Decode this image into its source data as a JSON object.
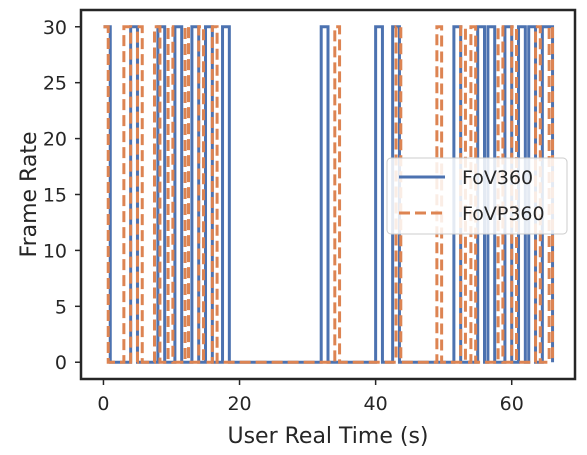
{
  "chart_data": {
    "type": "line",
    "step": "post",
    "xlabel": "User Real Time (s)",
    "ylabel": "Frame Rate",
    "xlim": [
      -3.3,
      69.3
    ],
    "ylim": [
      -1.5,
      31.5
    ],
    "xticks": [
      0,
      20,
      40,
      60
    ],
    "yticks": [
      0,
      5,
      10,
      15,
      20,
      25,
      30
    ],
    "grid": false,
    "legend_position": "center-right",
    "series": [
      {
        "name": "FoV360",
        "color": "#4c72b0",
        "dash": "solid",
        "x": [
          0,
          1,
          4,
          5,
          8,
          9,
          10.5,
          11.5,
          13,
          14,
          15,
          16,
          17.5,
          18.5,
          32,
          33,
          40,
          41,
          42.5,
          43.5,
          51.5,
          52.5,
          55,
          56,
          56.5,
          57.5,
          59,
          60,
          61,
          62,
          62.5,
          63.5,
          64.5,
          66
        ],
        "y": [
          30,
          0,
          30,
          0,
          30,
          0,
          30,
          0,
          30,
          0,
          30,
          0,
          30,
          0,
          30,
          0,
          30,
          0,
          30,
          0,
          30,
          0,
          30,
          0,
          30,
          0,
          30,
          0,
          30,
          0,
          30,
          0,
          30,
          0
        ]
      },
      {
        "name": "FoVP360",
        "color": "#dd8452",
        "dash": "dashed",
        "x": [
          0,
          0.7,
          3,
          4,
          5,
          5.7,
          7.5,
          8.3,
          9.5,
          10.2,
          12,
          12.5,
          14,
          14.7,
          16,
          16.7,
          34,
          34.7,
          43,
          43.7,
          49,
          49.7,
          52.5,
          53.2,
          54,
          54.7,
          58,
          58.7,
          60,
          60.7,
          63.5,
          64.2,
          65.5,
          66
        ],
        "y": [
          30,
          0,
          30,
          0,
          30,
          0,
          30,
          0,
          30,
          0,
          30,
          0,
          30,
          0,
          30,
          0,
          30,
          0,
          30,
          0,
          30,
          0,
          30,
          0,
          30,
          0,
          30,
          0,
          30,
          0,
          30,
          0,
          30,
          0
        ]
      }
    ]
  }
}
